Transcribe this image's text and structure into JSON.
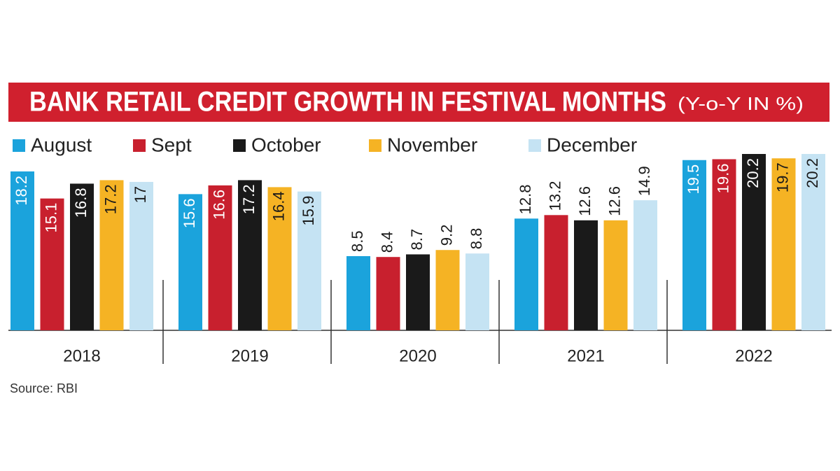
{
  "chart_data": {
    "type": "bar",
    "title": "BANK RETAIL CREDIT GROWTH IN FESTIVAL MONTHS",
    "subtitle": "(Y-o-Y IN %)",
    "categories": [
      "2018",
      "2019",
      "2020",
      "2021",
      "2022"
    ],
    "series": [
      {
        "name": "August",
        "color": "#1ba3dc",
        "values": [
          18.2,
          15.6,
          8.5,
          12.8,
          19.5
        ]
      },
      {
        "name": "Sept",
        "color": "#c8202e",
        "values": [
          15.1,
          16.6,
          8.4,
          13.2,
          19.6
        ]
      },
      {
        "name": "October",
        "color": "#1a1a1a",
        "values": [
          16.8,
          17.2,
          8.7,
          12.6,
          20.2
        ]
      },
      {
        "name": "November",
        "color": "#f5b324",
        "values": [
          17.2,
          16.4,
          9.2,
          12.6,
          19.7
        ]
      },
      {
        "name": "December",
        "color": "#c5e3f3",
        "values": [
          17,
          15.9,
          8.8,
          14.9,
          20.2
        ]
      }
    ],
    "source": "Source: RBI"
  }
}
